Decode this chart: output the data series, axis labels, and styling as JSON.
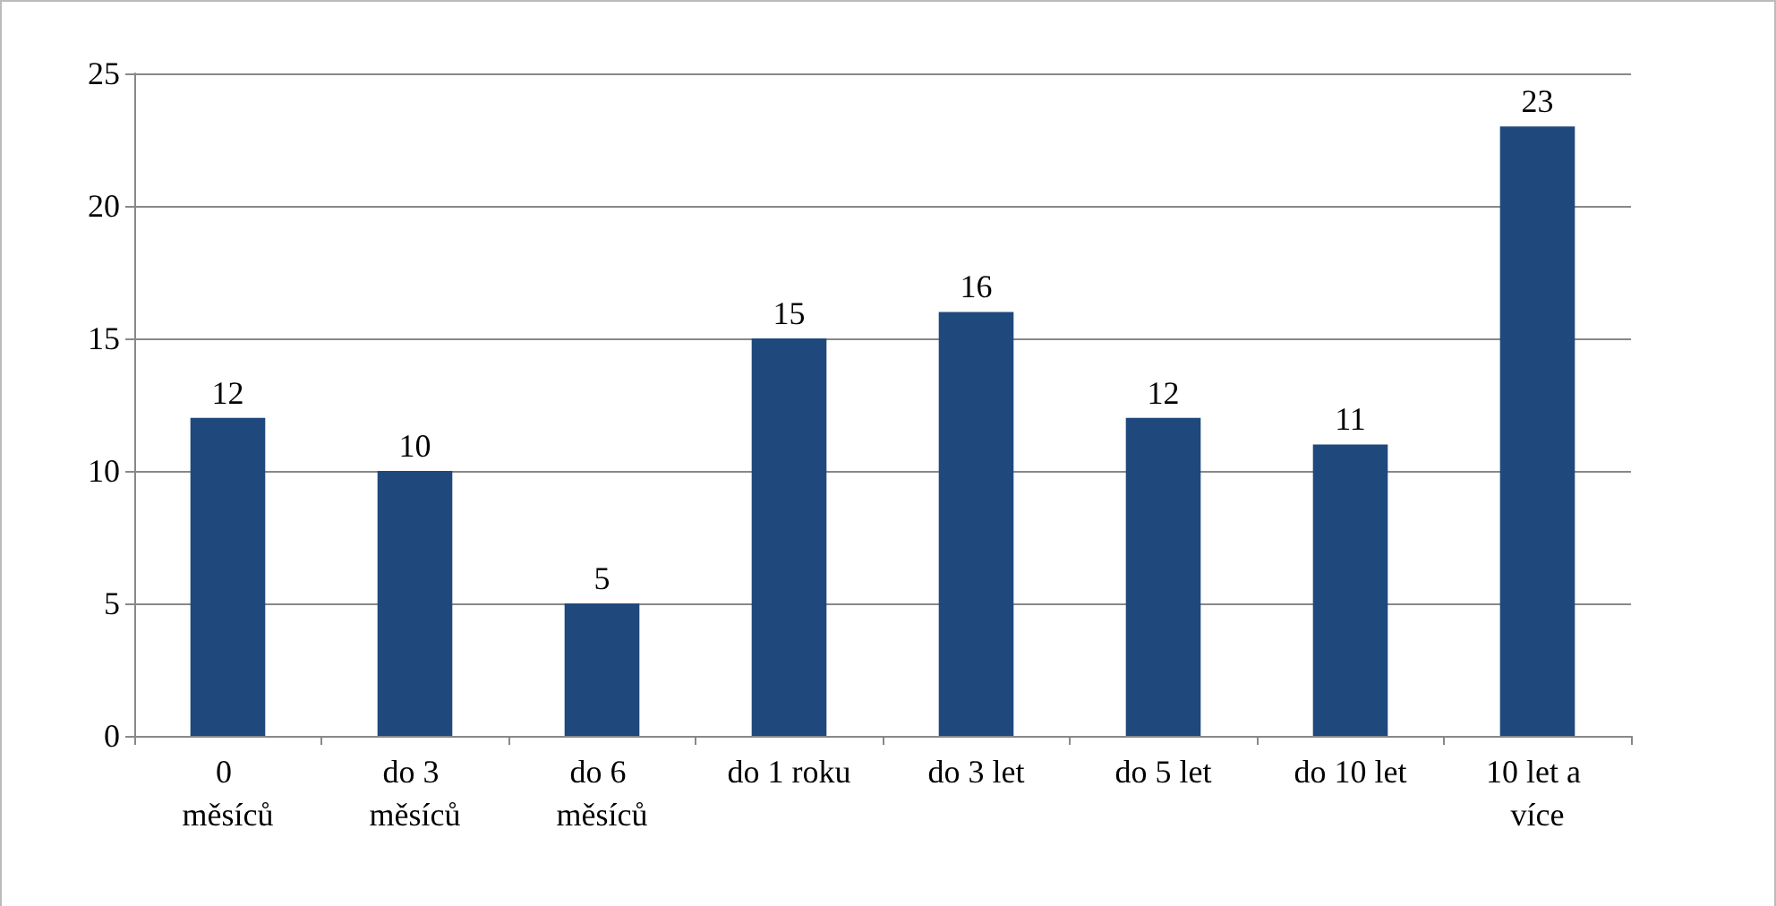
{
  "chart_data": {
    "type": "bar",
    "categories": [
      "0 měsíců",
      "do 3 měsíců",
      "do 6 měsíců",
      "do 1 roku",
      "do 3 let",
      "do 5 let",
      "do 10 let",
      "10 let a více"
    ],
    "values": [
      12,
      10,
      5,
      15,
      16,
      12,
      11,
      23
    ],
    "color": "#1f497d",
    "ylim": [
      0,
      25
    ],
    "yticks": [
      0,
      5,
      10,
      15,
      20,
      25
    ],
    "grid": "y",
    "data_labels": true
  }
}
